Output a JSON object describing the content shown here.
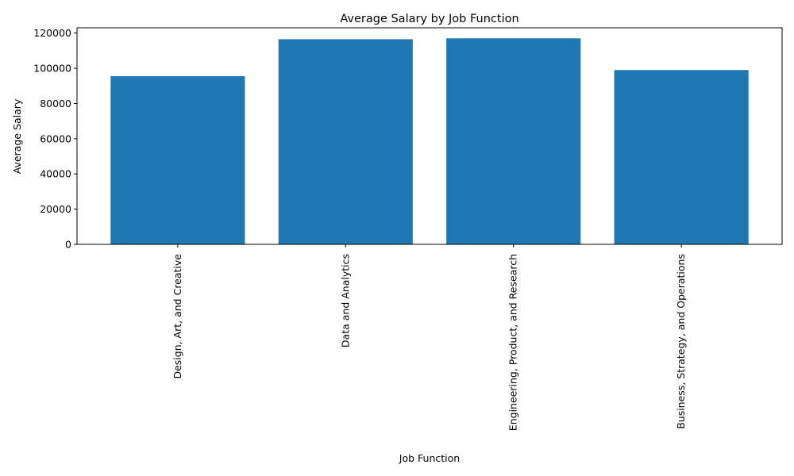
{
  "chart_data": {
    "type": "bar",
    "title": "Average Salary by Job Function",
    "xlabel": "Job Function",
    "ylabel": "Average Salary",
    "categories": [
      "Design, Art, and Creative",
      "Data and Analytics",
      "Engineering, Product, and Research",
      "Business, Strategy, and Operations"
    ],
    "values": [
      95500,
      116500,
      117000,
      99000
    ],
    "ylim": [
      0,
      123000
    ],
    "yticks": [
      0,
      20000,
      40000,
      60000,
      80000,
      100000,
      120000
    ],
    "bar_color": "#1f77b4",
    "grid": false
  }
}
